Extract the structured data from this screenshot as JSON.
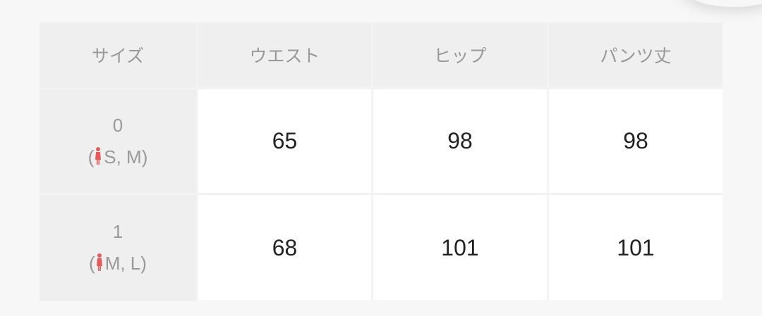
{
  "colors": {
    "accent": "#e85a5a",
    "header_bg": "#efefef",
    "body_bg": "#ffffff"
  },
  "table": {
    "headers": [
      "サイズ",
      "ウエスト",
      "ヒップ",
      "パンツ丈"
    ],
    "rows": [
      {
        "size": "0",
        "fit": "S, M",
        "icon": "female-icon",
        "waist": "65",
        "hip": "98",
        "length": "98"
      },
      {
        "size": "1",
        "fit": "M, L",
        "icon": "female-icon",
        "waist": "68",
        "hip": "101",
        "length": "101"
      }
    ]
  }
}
